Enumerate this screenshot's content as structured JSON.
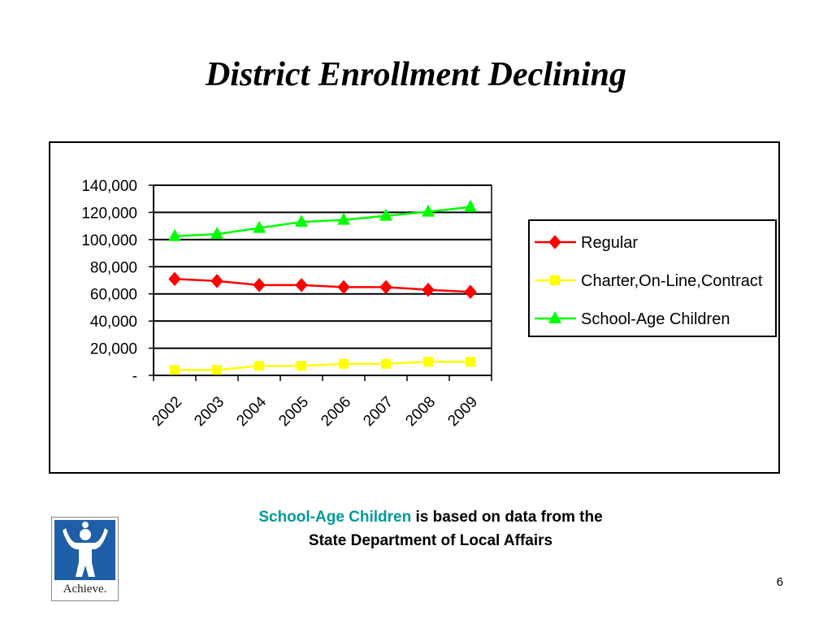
{
  "slide": {
    "title": "District Enrollment Declining",
    "page_number": "6"
  },
  "caption": {
    "highlight": "School-Age Children",
    "line1_rest": " is based on data from the",
    "line2": "State Department of Local Affairs"
  },
  "logo": {
    "text": "Achieve."
  },
  "colors": {
    "regular": "#ff0000",
    "charter": "#ffff00",
    "school_age": "#00ff00",
    "caption_highlight": "#009999",
    "logo_blue": "#1f5fa8"
  },
  "chart_data": {
    "type": "line",
    "title": "",
    "xlabel": "",
    "ylabel": "",
    "categories": [
      "2002",
      "2003",
      "2004",
      "2005",
      "2006",
      "2007",
      "2008",
      "2009"
    ],
    "ylim": [
      0,
      140000
    ],
    "y_ticks": [
      0,
      20000,
      40000,
      60000,
      80000,
      100000,
      120000,
      140000
    ],
    "y_tick_labels": [
      "-",
      "20,000",
      "40,000",
      "60,000",
      "80,000",
      "100,000",
      "120,000",
      "140,000"
    ],
    "grid": true,
    "legend_position": "right",
    "series": [
      {
        "name": "Regular",
        "marker": "diamond",
        "color": "#ff0000",
        "values": [
          71000,
          69500,
          66500,
          66500,
          65000,
          65000,
          63000,
          61500
        ]
      },
      {
        "name": "Charter,On-Line,Contract",
        "marker": "square",
        "color": "#ffff00",
        "values": [
          4000,
          4000,
          7000,
          7000,
          8500,
          8500,
          10000,
          10000
        ]
      },
      {
        "name": "School-Age Children",
        "marker": "triangle",
        "color": "#00ff00",
        "values": [
          102500,
          104000,
          108500,
          113000,
          114500,
          117500,
          120500,
          124000
        ]
      }
    ]
  }
}
